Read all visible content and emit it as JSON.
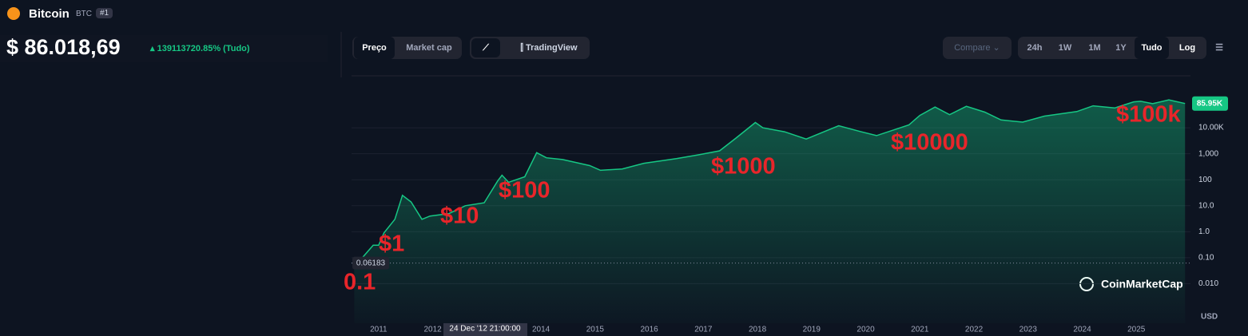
{
  "header": {
    "name": "Bitcoin",
    "symbol": "BTC",
    "rank": "#1",
    "price": "$ 86.018,69",
    "change": "139113720.85% (Tudo)"
  },
  "toolbar": {
    "price_tab": "Preço",
    "market_cap_tab": "Market cap",
    "tradingview": "TradingView",
    "compare": "Compare",
    "ranges": [
      "24h",
      "1W",
      "1M",
      "1Y",
      "Tudo"
    ],
    "log": "Log"
  },
  "chart_data": {
    "type": "line",
    "color": "#16c784",
    "log_scale": true,
    "grid": true,
    "x": [
      2010.55,
      2010.7,
      2010.9,
      2011.0,
      2011.1,
      2011.3,
      2011.44,
      2011.6,
      2011.8,
      2011.95,
      2012.3,
      2012.6,
      2012.95,
      2013.2,
      2013.28,
      2013.4,
      2013.7,
      2013.92,
      2014.1,
      2014.4,
      2014.9,
      2015.1,
      2015.5,
      2015.9,
      2016.5,
      2016.9,
      2017.3,
      2017.6,
      2017.96,
      2018.1,
      2018.5,
      2018.9,
      2019.5,
      2019.9,
      2020.2,
      2020.8,
      2021.0,
      2021.28,
      2021.55,
      2021.86,
      2022.2,
      2022.5,
      2022.9,
      2023.3,
      2023.9,
      2024.2,
      2024.6,
      2024.95,
      2025.08,
      2025.3,
      2025.6,
      2025.9
    ],
    "values": [
      0.06,
      0.1,
      0.3,
      0.3,
      0.9,
      3,
      25,
      14,
      3,
      4,
      5,
      10,
      13,
      90,
      150,
      80,
      130,
      1100,
      700,
      600,
      350,
      230,
      260,
      430,
      650,
      900,
      1300,
      4000,
      16000,
      10000,
      7000,
      3700,
      12000,
      7200,
      5000,
      13000,
      30000,
      63000,
      32000,
      67000,
      40000,
      20000,
      16500,
      28000,
      42000,
      70000,
      58000,
      100000,
      105000,
      85000,
      118000,
      86000
    ],
    "xlim": [
      2010.5,
      2026
    ],
    "xticks": [
      2011,
      2012,
      2014,
      2015,
      2016,
      2017,
      2018,
      2019,
      2020,
      2021,
      2022,
      2023,
      2024,
      2025
    ],
    "ylim": [
      0.0003,
      1000000
    ],
    "yticks": [
      {
        "value": 0.01,
        "label": "0.010"
      },
      {
        "value": 0.1,
        "label": "0.10"
      },
      {
        "value": 1,
        "label": "1.0"
      },
      {
        "value": 10,
        "label": "10.0"
      },
      100,
      {
        "value": 1000,
        "label": "1,000"
      },
      {
        "value": 10000,
        "label": "10.00K"
      }
    ],
    "current_price": {
      "value": 85950,
      "label": "85.95K"
    },
    "start_price": 0.06183,
    "currency": "USD",
    "watermark": "CoinMarketCap",
    "tooltip": "24 Dec '12 21:00:00",
    "annotations": [
      "0.1",
      "$1",
      "$10",
      "$100",
      "$1000",
      "$10000",
      "$100k"
    ]
  }
}
